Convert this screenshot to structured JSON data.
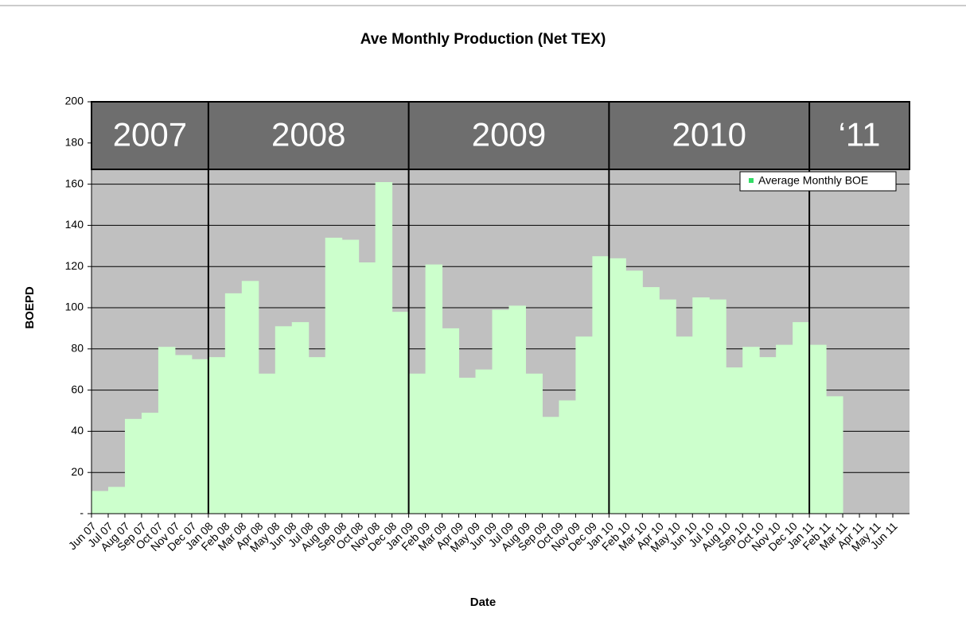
{
  "chart_data": {
    "type": "bar",
    "title": "Ave Monthly Production (Net TEX)",
    "x_label": "Date",
    "y_label": "BOEPD",
    "year_labels": [
      "2007",
      "2008",
      "2009",
      "2010",
      "‘11"
    ],
    "categories": [
      "Jun 07",
      "Jul 07",
      "Aug 07",
      "Sep 07",
      "Oct 07",
      "Nov 07",
      "Dec 07",
      "Jan 08",
      "Feb 08",
      "Mar 08",
      "Apr 08",
      "May 08",
      "Jun 08",
      "Jul 08",
      "Aug 08",
      "Sep 08",
      "Oct 08",
      "Nov 08",
      "Dec 08",
      "Jan 09",
      "Feb 09",
      "Mar 09",
      "Apr 09",
      "May 09",
      "Jun 09",
      "Jul 09",
      "Aug 09",
      "Sep 09",
      "Oct 09",
      "Nov 09",
      "Dec 09",
      "Jan 10",
      "Feb 10",
      "Mar 10",
      "Apr 10",
      "May 10",
      "Jun 10",
      "Jul 10",
      "Aug 10",
      "Sep 10",
      "Oct 10",
      "Nov 10",
      "Dec 10",
      "Jan 11",
      "Feb 11",
      "Mar 11",
      "Apr 11",
      "May 11",
      "Jun 11"
    ],
    "series": [
      {
        "name": "Average Monthly BOE",
        "color": "#ccffcc",
        "values": [
          11,
          13,
          46,
          49,
          81,
          77,
          75,
          76,
          107,
          113,
          68,
          91,
          93,
          76,
          134,
          133,
          122,
          161,
          98,
          68,
          121,
          90,
          66,
          70,
          99,
          101,
          68,
          47,
          55,
          86,
          125,
          124,
          118,
          110,
          104,
          86,
          105,
          104,
          71,
          81,
          76,
          82,
          93,
          82,
          57,
          null,
          null,
          null,
          null
        ]
      }
    ],
    "ylim": [
      0,
      200
    ],
    "yticks": [
      {
        "value": 0,
        "label": "-"
      },
      20,
      40,
      60,
      80,
      100,
      120,
      140,
      160,
      180,
      200
    ],
    "grid": true,
    "legend": "upper right",
    "plot_background": "#c0c0c0"
  }
}
